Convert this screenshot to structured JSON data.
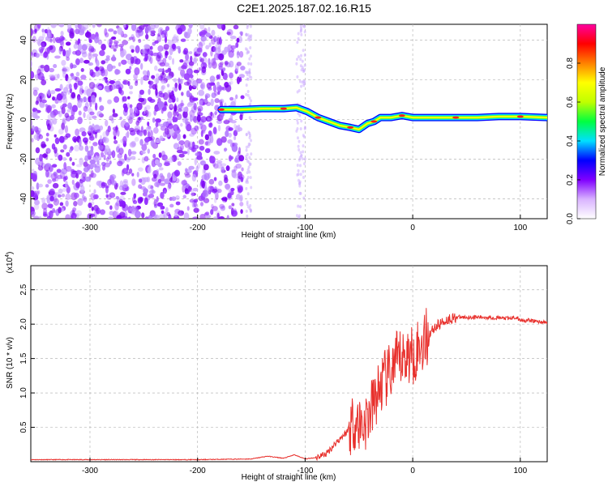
{
  "title": "C2E1.2025.187.02.16.R15",
  "chart_data": [
    {
      "type": "heatmap",
      "xlabel": "Height of straight line (km)",
      "ylabel": "Frequency (Hz)",
      "xlim": [
        -355,
        125
      ],
      "ylim": [
        -50,
        48
      ],
      "x_ticks": [
        -300,
        -200,
        -100,
        0,
        100
      ],
      "y_ticks": [
        -40,
        -20,
        0,
        20,
        40
      ],
      "colorbar": {
        "label": "Normalized spectral amplitude",
        "range": [
          0,
          1
        ],
        "ticks": [
          0.0,
          0.2,
          0.4,
          0.6,
          0.8
        ],
        "tick_labels": [
          "0.0",
          "0.2",
          "0.4",
          "0.6",
          "0.8"
        ],
        "colors": [
          "#ffffff",
          "#d9b3ff",
          "#8000ff",
          "#0000ff",
          "#00e0ff",
          "#00ff40",
          "#c0ff00",
          "#ffff00",
          "#ff8000",
          "#ff0000",
          "#ff00a0"
        ]
      },
      "noise_region": {
        "x_range": [
          -355,
          -158
        ],
        "note_bands": [
          [
            -155,
            -150
          ],
          [
            -108,
            -100
          ]
        ]
      },
      "ridge": {
        "x": [
          -178,
          -160,
          -140,
          -120,
          -108,
          -98,
          -88,
          -78,
          -68,
          -58,
          -50,
          -42,
          -36,
          -30,
          -20,
          -10,
          0,
          20,
          40,
          60,
          80,
          100,
          125
        ],
        "y": [
          5,
          5,
          5.5,
          5.5,
          6,
          4,
          1,
          -1,
          -3,
          -4,
          -5,
          -2,
          -1,
          1,
          1,
          2,
          1,
          1,
          1,
          1,
          1.5,
          1.5,
          1
        ]
      },
      "grid": true
    },
    {
      "type": "line",
      "xlabel": "Height of straight line (km)",
      "ylabel": "SNR (10 * v/v)",
      "y_multiplier_label": "(x10",
      "y_multiplier_exp": "4",
      "y_multiplier_close": ")",
      "xlim": [
        -355,
        125
      ],
      "ylim": [
        0,
        2.85
      ],
      "x_ticks": [
        -300,
        -200,
        -100,
        0,
        100
      ],
      "y_ticks": [
        0.5,
        1.0,
        1.5,
        2.0,
        2.5
      ],
      "y_tick_labels": [
        "0.5",
        "1.0",
        "1.5",
        "2.0",
        "2.5"
      ],
      "series": [
        {
          "color": "#e8302c",
          "x": [
            -355,
            -300,
            -250,
            -200,
            -150,
            -135,
            -120,
            -110,
            -100,
            -90,
            -80,
            -70,
            -60,
            -55,
            -50,
            -45,
            -40,
            -35,
            -30,
            -25,
            -20,
            -15,
            -10,
            -5,
            0,
            5,
            10,
            15,
            20,
            25,
            30,
            35,
            40,
            50,
            60,
            70,
            80,
            90,
            95,
            100,
            110,
            125
          ],
          "y": [
            0.03,
            0.03,
            0.03,
            0.03,
            0.04,
            0.08,
            0.05,
            0.1,
            0.04,
            0.06,
            0.12,
            0.3,
            0.45,
            0.6,
            0.55,
            0.55,
            0.7,
            0.9,
            1.1,
            1.2,
            1.3,
            1.45,
            1.5,
            1.55,
            1.55,
            1.65,
            1.75,
            1.85,
            1.95,
            2.0,
            2.05,
            2.08,
            2.1,
            2.1,
            2.1,
            2.1,
            2.09,
            2.08,
            2.1,
            2.06,
            2.05,
            2.02
          ]
        }
      ],
      "grid": true
    }
  ]
}
